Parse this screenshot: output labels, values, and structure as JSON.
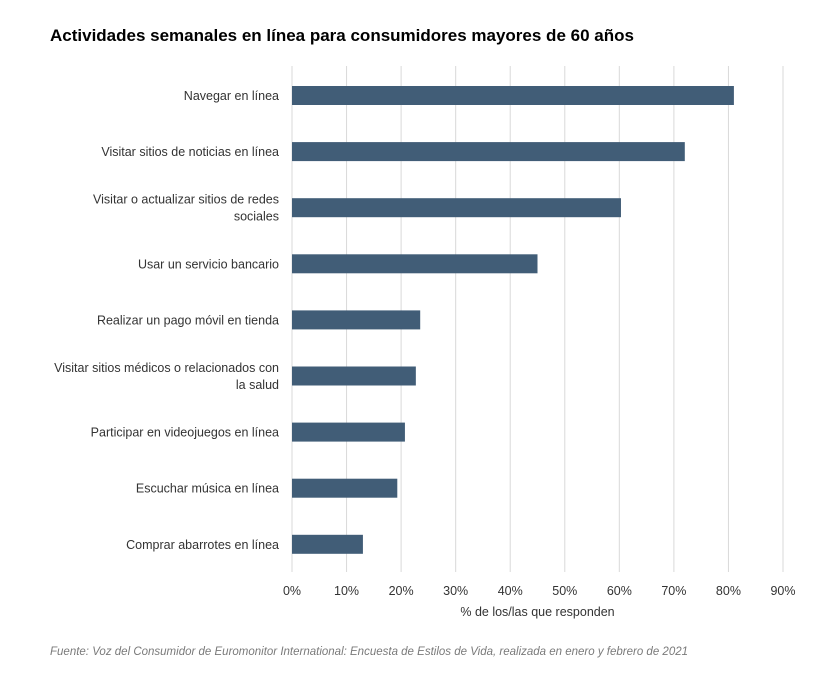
{
  "chart_data": {
    "type": "bar",
    "orientation": "horizontal",
    "title": "Actividades semanales en línea para consumidores mayores de 60 años",
    "categories": [
      "Navegar en línea",
      "Visitar sitios de noticias en línea",
      "Visitar o actualizar sitios de redes sociales",
      "Usar un servicio bancario",
      "Realizar un pago móvil en tienda",
      "Visitar sitios médicos  o relacionados con la salud",
      "Participar en videojuegos en línea",
      "Escuchar música en línea",
      "Comprar abarrotes en línea"
    ],
    "category_lines": [
      [
        "Navegar en línea"
      ],
      [
        "Visitar sitios de noticias en línea"
      ],
      [
        "Visitar o actualizar sitios de redes",
        "sociales"
      ],
      [
        "Usar un servicio bancario"
      ],
      [
        "Realizar un pago móvil en tienda"
      ],
      [
        "Visitar sitios médicos  o relacionados con",
        "la salud"
      ],
      [
        "Participar en videojuegos en línea"
      ],
      [
        "Escuchar música en línea"
      ],
      [
        "Comprar abarrotes en línea"
      ]
    ],
    "values": [
      81,
      72,
      60.3,
      45,
      23.5,
      22.7,
      20.7,
      19.3,
      13
    ],
    "xlim": [
      0,
      90
    ],
    "xticks": [
      "0%",
      "10%",
      "20%",
      "30%",
      "40%",
      "50%",
      "60%",
      "70%",
      "80%",
      "90%"
    ],
    "xlabel": "% de los/las que responden",
    "ylabel": "",
    "grid": true,
    "bar_color": "#415d77",
    "grid_color": "#d9d9d9"
  },
  "footnote": "Fuente: Voz del Consumidor de Euromonitor International: Encuesta de Estilos de Vida, realizada en enero y febrero de 2021"
}
